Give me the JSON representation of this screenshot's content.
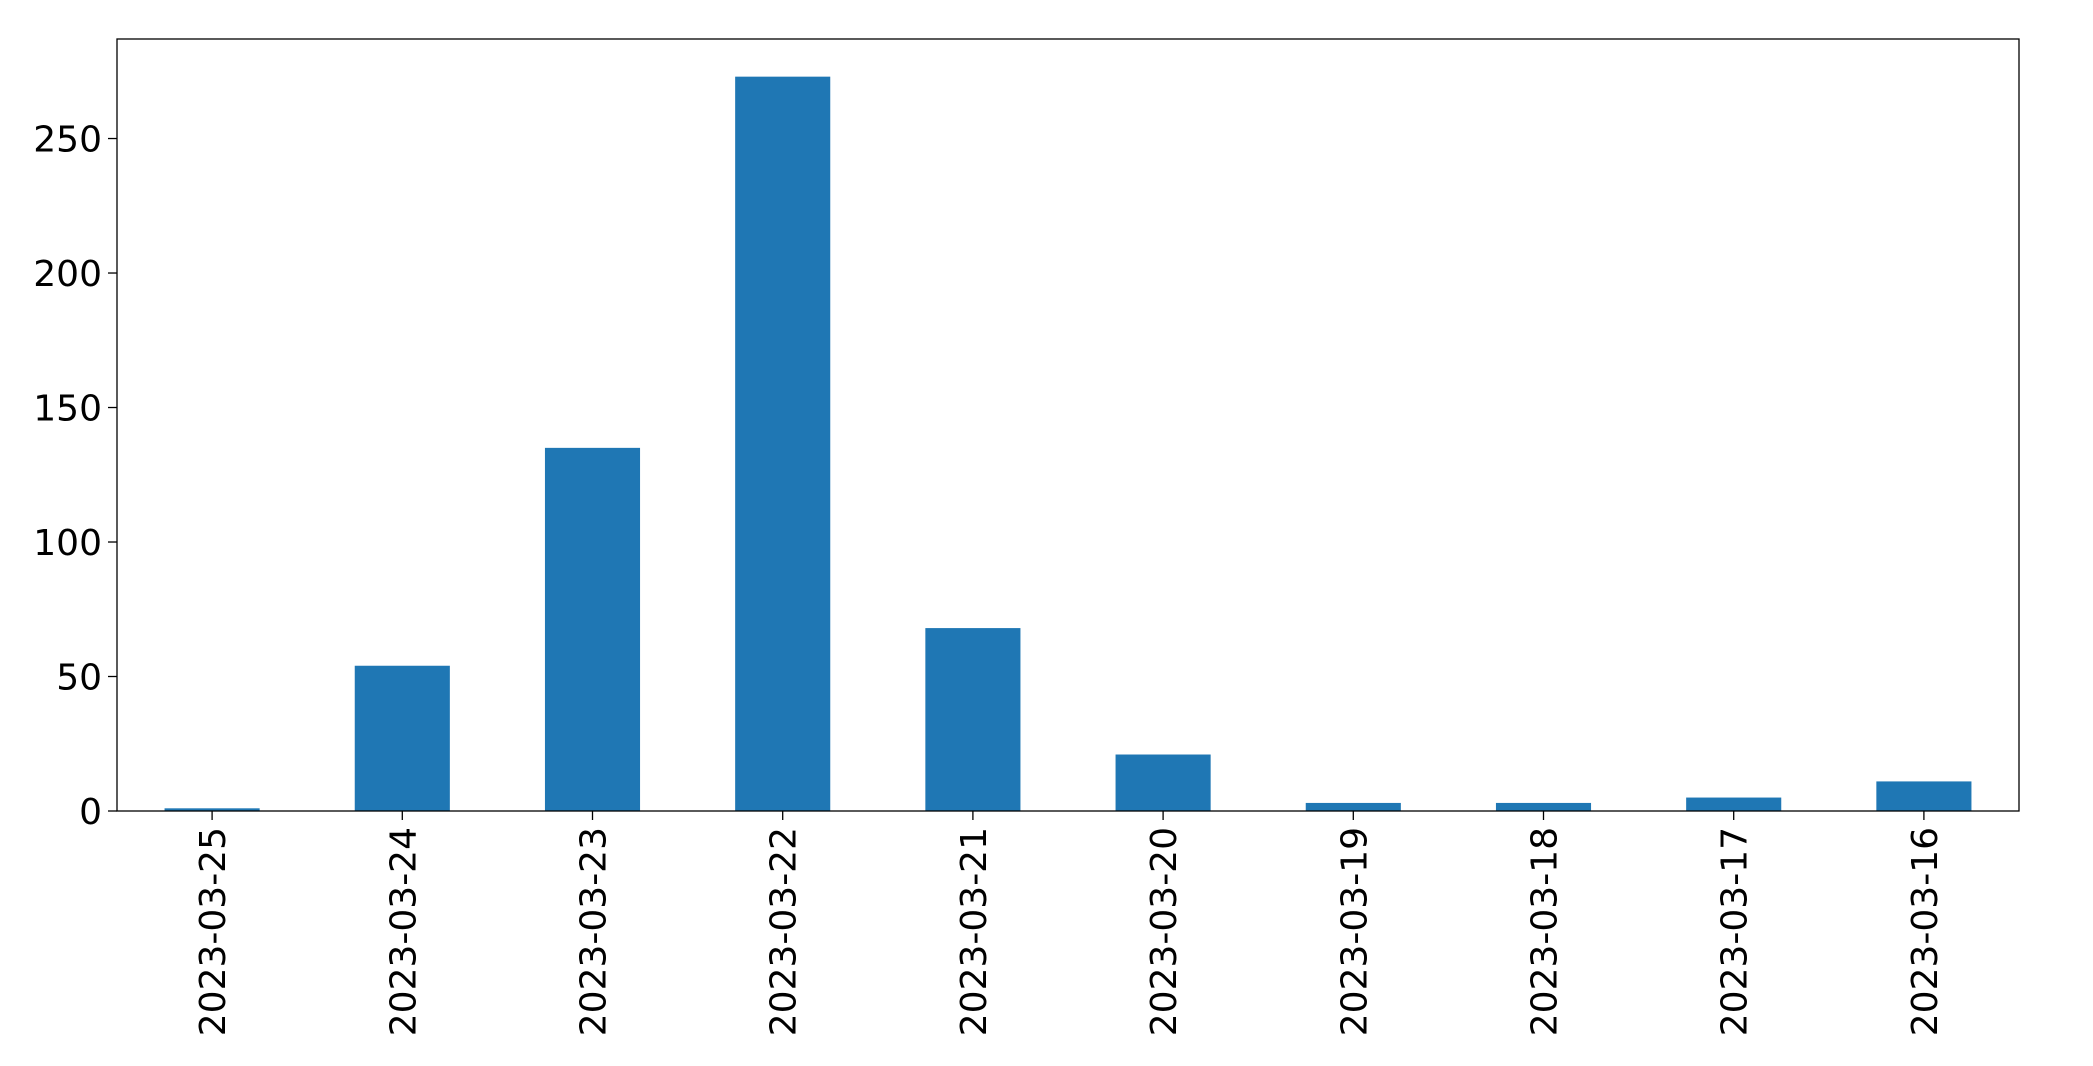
{
  "chart_data": {
    "type": "bar",
    "title": "",
    "xlabel": "",
    "ylabel": "",
    "categories": [
      "2023-03-25",
      "2023-03-24",
      "2023-03-23",
      "2023-03-22",
      "2023-03-21",
      "2023-03-20",
      "2023-03-19",
      "2023-03-18",
      "2023-03-17",
      "2023-03-16"
    ],
    "values": [
      1,
      54,
      135,
      273,
      68,
      21,
      3,
      3,
      5,
      11
    ],
    "ylim": [
      0,
      287
    ],
    "yticks": [
      0,
      50,
      100,
      150,
      200,
      250
    ],
    "bar_color": "#1f77b4",
    "grid": false,
    "legend": false
  }
}
